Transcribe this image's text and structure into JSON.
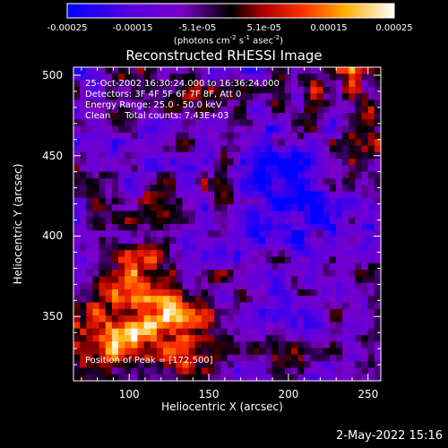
{
  "chart_data": {
    "type": "heatmap",
    "title": "Reconstructed RHESSI Image",
    "xlabel": "Heliocentric X (arcsec)",
    "ylabel": "Heliocentric Y (arcsec)",
    "xlim": [
      65,
      258
    ],
    "ylim": [
      310,
      505
    ],
    "x_ticks": [
      "100",
      "150",
      "200",
      "250"
    ],
    "x_tick_values": [
      100,
      150,
      200,
      250
    ],
    "y_ticks": [
      "350",
      "400",
      "450",
      "500"
    ],
    "y_tick_values": [
      350,
      400,
      450,
      500
    ],
    "colorbar": {
      "range": [
        -0.00025,
        0.00025
      ],
      "tick_labels": [
        "-0.00025",
        "-0.00015",
        "-5.1e-05",
        "5.1e-05",
        "0.00015",
        "0.00025"
      ],
      "tick_values": [
        -0.00025,
        -0.00015,
        -5.1e-05,
        5.1e-05,
        0.00015,
        0.00025
      ],
      "unit_label": "(photons cm-2 s-1 asec-2)",
      "colors": [
        "#0000ff",
        "#7a00c8",
        "#000000",
        "#d00000",
        "#ff8000",
        "#ffff80",
        "#ffffff"
      ]
    },
    "annotations": [
      "25-Oct-2002 16:30:24.000 to 16:36:24.000",
      "Detectors: 3F 4F 5F 6F 7F 8F, Att 0",
      "Energy Range: 25.0 - 50.0 keV",
      "Clean     Total counts: 7.43E+03"
    ],
    "peak_label": "Position of Peak = [172,500]",
    "peak_position": [
      172,
      500
    ]
  },
  "footer": {
    "timestamp": "2-May-2022 15:16"
  }
}
